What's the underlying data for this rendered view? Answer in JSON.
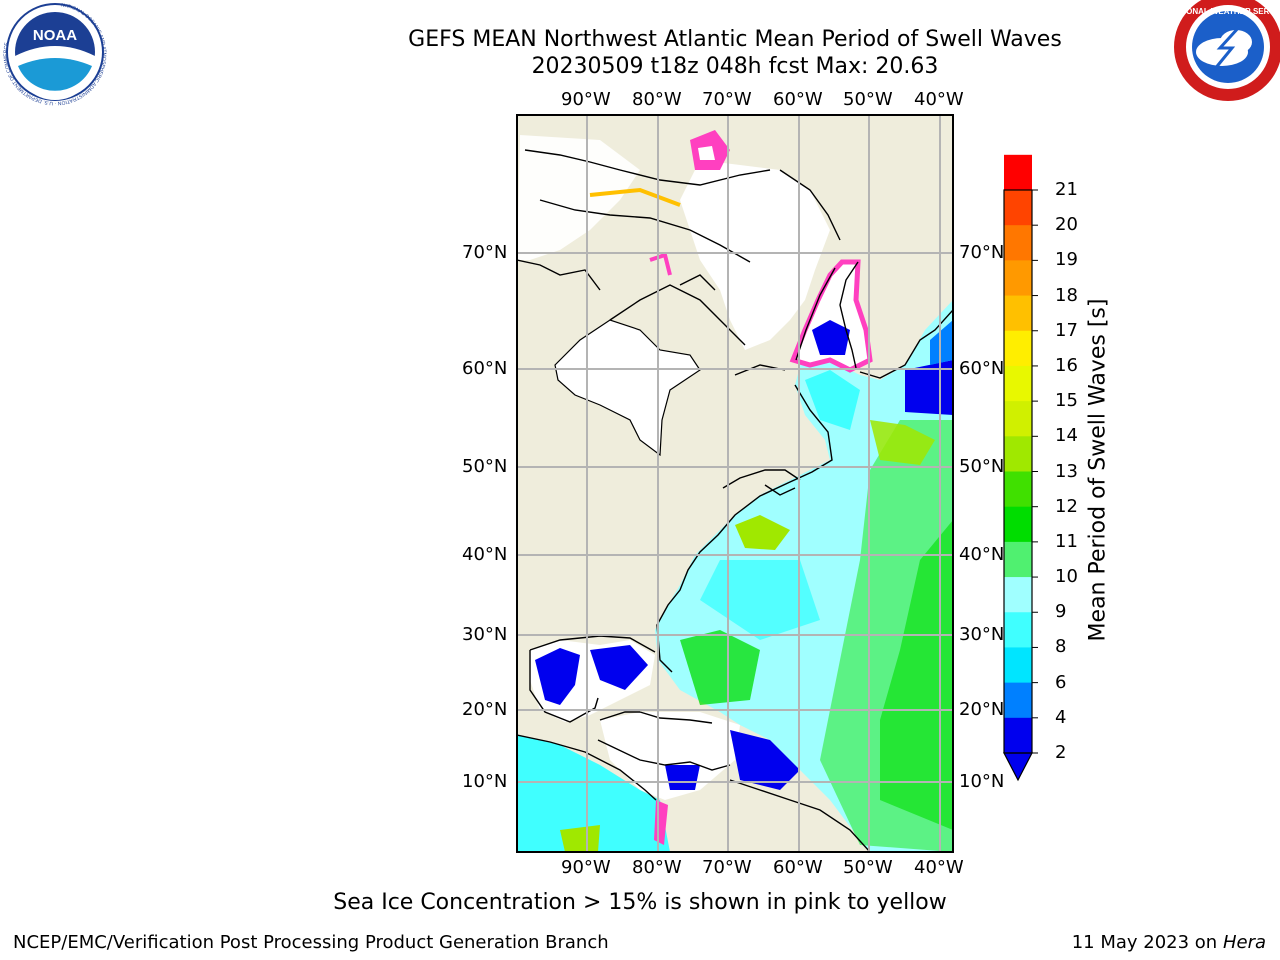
{
  "header": {
    "title_line1": "GEFS MEAN Northwest Atlantic Mean Period of Swell Waves",
    "title_line2": "20230509 t18z 048h fcst   Max: 20.63"
  },
  "logos": {
    "left": {
      "text": "NOAA",
      "ring_text": "NATIONAL OCEANIC AND ATMOSPHERIC ADMINISTRATION · U.S. DEPARTMENT OF COMMERCE"
    },
    "right": {
      "ring_text": "NATIONAL WEATHER SERVICE"
    }
  },
  "map": {
    "lon_labels": [
      "90°W",
      "80°W",
      "70°W",
      "60°W",
      "50°W",
      "40°W"
    ],
    "lat_labels": [
      "70°N",
      "60°N",
      "50°N",
      "40°N",
      "30°N",
      "20°N",
      "10°N"
    ]
  },
  "colorbar": {
    "title": "Mean Period of Swell Waves [s]",
    "levels": [
      "2",
      "4",
      "6",
      "8",
      "9",
      "10",
      "11",
      "12",
      "13",
      "14",
      "15",
      "16",
      "17",
      "18",
      "19",
      "20",
      "21"
    ],
    "colors": [
      "#0000ee",
      "#0080ff",
      "#00e5ff",
      "#40ffff",
      "#a0ffff",
      "#50f070",
      "#00dd00",
      "#40e000",
      "#a0e800",
      "#d0f000",
      "#e8f800",
      "#ffee00",
      "#ffc000",
      "#ff9900",
      "#ff7700",
      "#ff4400",
      "#ff0000"
    ],
    "extend_color": "#0000ee"
  },
  "caption": "Sea Ice Concentration > 15% is shown in pink to yellow",
  "footer": {
    "left": "NCEP/EMC/Verification Post Processing Product Generation Branch",
    "date": "11 May 2023 on",
    "host": "Hera"
  }
}
